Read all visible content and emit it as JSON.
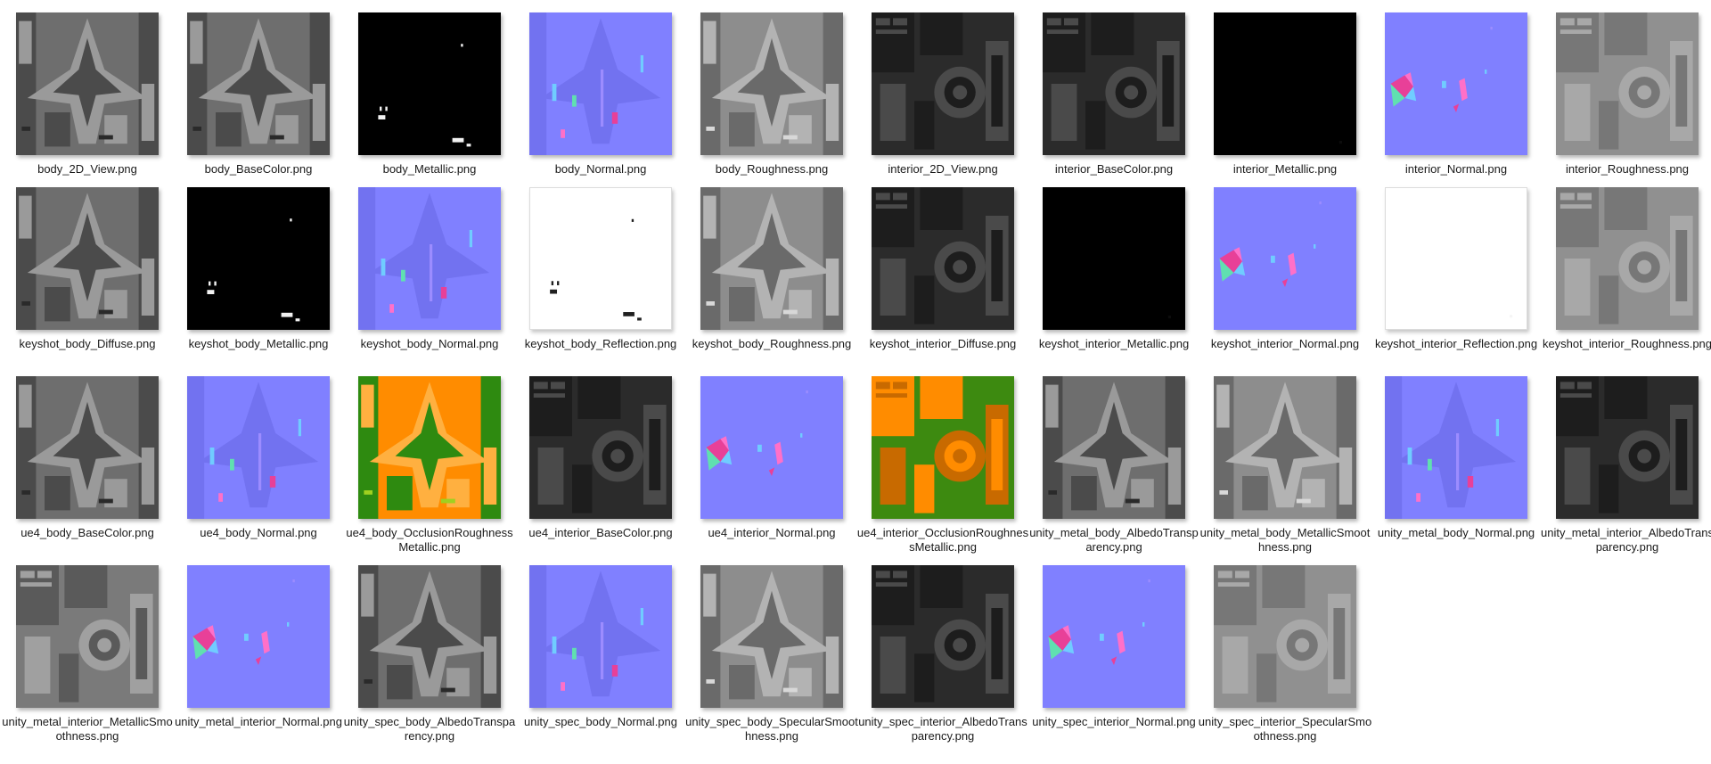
{
  "window": {
    "view_mode": "Large icons"
  },
  "files": [
    {
      "name": "body_2D_View.png",
      "icon": "body-texture-thumbnail-icon",
      "tex": "grey",
      "pattern": "body"
    },
    {
      "name": "body_BaseColor.png",
      "icon": "body-texture-thumbnail-icon",
      "tex": "grey",
      "pattern": "body"
    },
    {
      "name": "body_Metallic.png",
      "icon": "metallic-texture-thumbnail-icon",
      "tex": "black",
      "pattern": "specks"
    },
    {
      "name": "body_Normal.png",
      "icon": "normal-map-thumbnail-icon",
      "tex": "normal",
      "pattern": "normalbody"
    },
    {
      "name": "body_Roughness.png",
      "icon": "roughness-texture-thumbnail-icon",
      "tex": "rough",
      "pattern": "body"
    },
    {
      "name": "interior_2D_View.png",
      "icon": "interior-texture-thumbnail-icon",
      "tex": "dark",
      "pattern": "interior"
    },
    {
      "name": "interior_BaseColor.png",
      "icon": "interior-texture-thumbnail-icon",
      "tex": "dark",
      "pattern": "interior"
    },
    {
      "name": "interior_Metallic.png",
      "icon": "metallic-texture-thumbnail-icon",
      "tex": "black",
      "pattern": "blank"
    },
    {
      "name": "interior_Normal.png",
      "icon": "normal-map-thumbnail-icon",
      "tex": "normal",
      "pattern": "normalint"
    },
    {
      "name": "interior_Roughness.png",
      "icon": "roughness-texture-thumbnail-icon",
      "tex": "lightgrey",
      "pattern": "interior"
    },
    {
      "name": "keyshot_body_Diffuse.png",
      "icon": "body-texture-thumbnail-icon",
      "tex": "grey",
      "pattern": "body"
    },
    {
      "name": "keyshot_body_Metallic.png",
      "icon": "metallic-texture-thumbnail-icon",
      "tex": "black",
      "pattern": "specks"
    },
    {
      "name": "keyshot_body_Normal.png",
      "icon": "normal-map-thumbnail-icon",
      "tex": "normal",
      "pattern": "normalbody"
    },
    {
      "name": "keyshot_body_Reflection.png",
      "icon": "reflection-texture-thumbnail-icon",
      "tex": "white",
      "pattern": "specks"
    },
    {
      "name": "keyshot_body_Roughness.png",
      "icon": "roughness-texture-thumbnail-icon",
      "tex": "rough",
      "pattern": "body"
    },
    {
      "name": "keyshot_interior_Diffuse.png",
      "icon": "interior-texture-thumbnail-icon",
      "tex": "dark",
      "pattern": "interior"
    },
    {
      "name": "keyshot_interior_Metallic.png",
      "icon": "metallic-texture-thumbnail-icon",
      "tex": "black",
      "pattern": "blank"
    },
    {
      "name": "keyshot_interior_Normal.png",
      "icon": "normal-map-thumbnail-icon",
      "tex": "normal",
      "pattern": "normalint"
    },
    {
      "name": "keyshot_interior_Reflection.png",
      "icon": "reflection-texture-thumbnail-icon",
      "tex": "white",
      "pattern": "blank"
    },
    {
      "name": "keyshot_interior_Roughness.png",
      "icon": "roughness-texture-thumbnail-icon",
      "tex": "lightgrey",
      "pattern": "interior"
    },
    {
      "name": "ue4_body_BaseColor.png",
      "icon": "body-texture-thumbnail-icon",
      "tex": "grey",
      "pattern": "body"
    },
    {
      "name": "ue4_body_Normal.png",
      "icon": "normal-map-thumbnail-icon",
      "tex": "normal",
      "pattern": "normalbody"
    },
    {
      "name": "ue4_body_OcclusionRoughnessMetallic.png",
      "icon": "orm-texture-thumbnail-icon",
      "tex": "orm",
      "pattern": "body"
    },
    {
      "name": "ue4_interior_BaseColor.png",
      "icon": "interior-texture-thumbnail-icon",
      "tex": "dark",
      "pattern": "interior"
    },
    {
      "name": "ue4_interior_Normal.png",
      "icon": "normal-map-thumbnail-icon",
      "tex": "normal",
      "pattern": "normalint"
    },
    {
      "name": "ue4_interior_OcclusionRoughnessMetallic.png",
      "icon": "orm-texture-thumbnail-icon",
      "tex": "ormi",
      "pattern": "interior"
    },
    {
      "name": "unity_metal_body_AlbedoTransparency.png",
      "icon": "body-texture-thumbnail-icon",
      "tex": "grey",
      "pattern": "body"
    },
    {
      "name": "unity_metal_body_MetallicSmoothness.png",
      "icon": "smoothness-texture-thumbnail-icon",
      "tex": "rough",
      "pattern": "body"
    },
    {
      "name": "unity_metal_body_Normal.png",
      "icon": "normal-map-thumbnail-icon",
      "tex": "normal",
      "pattern": "normalbody"
    },
    {
      "name": "unity_metal_interior_AlbedoTransparency.png",
      "icon": "interior-texture-thumbnail-icon",
      "tex": "dark",
      "pattern": "interior"
    },
    {
      "name": "unity_metal_interior_MetallicSmoothness.png",
      "icon": "smoothness-texture-thumbnail-icon",
      "tex": "metsm",
      "pattern": "interior"
    },
    {
      "name": "unity_metal_interior_Normal.png",
      "icon": "normal-map-thumbnail-icon",
      "tex": "normal",
      "pattern": "normalint"
    },
    {
      "name": "unity_spec_body_AlbedoTransparency.png",
      "icon": "body-texture-thumbnail-icon",
      "tex": "grey",
      "pattern": "body"
    },
    {
      "name": "unity_spec_body_Normal.png",
      "icon": "normal-map-thumbnail-icon",
      "tex": "normal",
      "pattern": "normalbody"
    },
    {
      "name": "unity_spec_body_SpecularSmoothness.png",
      "icon": "specular-texture-thumbnail-icon",
      "tex": "rough",
      "pattern": "body"
    },
    {
      "name": "unity_spec_interior_AlbedoTransparency.png",
      "icon": "interior-texture-thumbnail-icon",
      "tex": "dark",
      "pattern": "interior"
    },
    {
      "name": "unity_spec_interior_Normal.png",
      "icon": "normal-map-thumbnail-icon",
      "tex": "normal",
      "pattern": "normalint"
    },
    {
      "name": "unity_spec_interior_SpecularSmoothness.png",
      "icon": "specular-texture-thumbnail-icon",
      "tex": "lightgrey",
      "pattern": "interior"
    }
  ]
}
